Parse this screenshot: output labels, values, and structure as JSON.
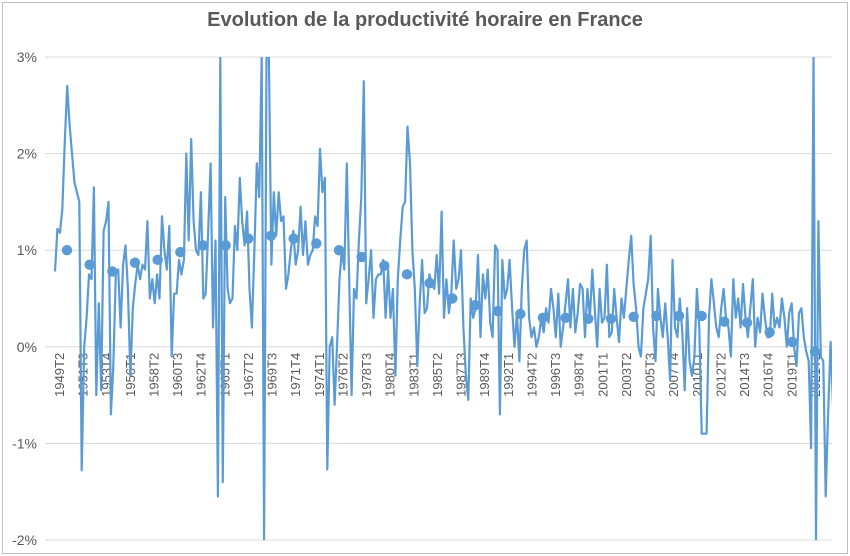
{
  "chart_data": {
    "type": "line",
    "title": "Evolution de la productivité horaire en France",
    "xlabel": "",
    "ylabel": "",
    "ylim": [
      -2,
      3
    ],
    "y_ticks": [
      "3%",
      "2%",
      "1%",
      "0%",
      "-1%",
      "-2%"
    ],
    "y_tick_values": [
      3,
      2,
      1,
      0,
      -1,
      -2
    ],
    "grid": "horizontal",
    "legend": "none",
    "line_color": "#5b9bd5",
    "x_tick_labels": [
      "1949T2",
      "1951T3",
      "1953T4",
      "1956T1",
      "1958T2",
      "1960T3",
      "1962T4",
      "1965T1",
      "1967T2",
      "1969T3",
      "1971T4",
      "1974T1",
      "1976T2",
      "1978T3",
      "1980T4",
      "1983T1",
      "1985T2",
      "1987T3",
      "1989T4",
      "1992T1",
      "1994T2",
      "1996T3",
      "1998T4",
      "2001T1",
      "2003T2",
      "2005T3",
      "2007T4",
      "2010T1",
      "2012T2",
      "2014T3",
      "2016T4",
      "2019T1",
      "2021T2"
    ],
    "series": [
      {
        "kind": "quarterly",
        "values": [
          0.78,
          1.22,
          1.18,
          1.42,
          2.1,
          2.7,
          2.3,
          2.0,
          1.7,
          1.6,
          1.5,
          -1.28,
          0.0,
          0.3,
          0.75,
          0.7,
          1.65,
          -0.5,
          0.45,
          -0.45,
          1.2,
          1.3,
          1.5,
          -0.7,
          -0.2,
          0.75,
          0.8,
          0.2,
          0.85,
          1.05,
          0.6,
          -0.3,
          0.4,
          0.65,
          0.85,
          0.7,
          0.85,
          0.8,
          1.3,
          0.5,
          0.7,
          0.45,
          0.75,
          0.5,
          1.35,
          1.0,
          0.8,
          1.25,
          -0.1,
          0.55,
          0.55,
          0.9,
          0.75,
          0.9,
          2.0,
          1.1,
          2.15,
          1.3,
          1.0,
          0.95,
          1.6,
          0.5,
          0.55,
          1.2,
          1.9,
          0.2,
          1.1,
          -1.55,
          3.0,
          -1.4,
          1.55,
          0.6,
          0.45,
          0.5,
          1.25,
          1.0,
          1.75,
          1.3,
          1.05,
          1.4,
          0.6,
          0.2,
          1.0,
          1.9,
          1.55,
          3.0,
          -2.0,
          3.0,
          3.0,
          0.85,
          1.6,
          1.15,
          1.6,
          1.3,
          1.35,
          0.6,
          0.75,
          1.0,
          1.2,
          0.85,
          1.0,
          1.45,
          0.95,
          1.3,
          0.85,
          0.95,
          1.0,
          1.35,
          1.25,
          2.05,
          1.6,
          1.75,
          -1.27,
          0.0,
          0.1,
          -0.6,
          0.0,
          0.7,
          1.0,
          0.8,
          1.9,
          0.7,
          -0.5,
          0.6,
          0.5,
          1.1,
          1.55,
          2.75,
          0.45,
          0.7,
          1.0,
          0.3,
          0.7,
          0.75,
          0.75,
          0.9,
          0.3,
          0.8,
          0.3,
          0.6,
          -0.3,
          0.7,
          1.1,
          1.45,
          1.5,
          2.28,
          1.9,
          1.0,
          0.6,
          -0.2,
          0.45,
          0.9,
          0.35,
          0.4,
          0.75,
          0.65,
          0.6,
          0.95,
          0.55,
          1.4,
          0.3,
          0.7,
          0.35,
          0.55,
          1.1,
          0.6,
          0.7,
          1.0,
          0.2,
          -0.3,
          -0.55,
          0.5,
          0.3,
          0.4,
          0.95,
          0.1,
          0.75,
          0.5,
          0.8,
          0.25,
          0.1,
          1.05,
          1.0,
          -0.7,
          0.9,
          0.5,
          0.6,
          0.9,
          0.4,
          0.0,
          0.35,
          -0.15,
          0.6,
          1.0,
          1.1,
          0.3,
          0.1,
          0.2,
          0.0,
          0.1,
          0.3,
          0.15,
          0.4,
          0.25,
          0.6,
          0.4,
          0.1,
          0.55,
          0.0,
          0.2,
          0.45,
          0.7,
          0.2,
          0.6,
          0.15,
          0.35,
          0.65,
          0.6,
          0.1,
          0.6,
          0.3,
          0.8,
          0.4,
          0.0,
          0.6,
          0.25,
          0.3,
          0.85,
          0.1,
          0.15,
          0.6,
          0.3,
          0.05,
          0.5,
          0.3,
          0.6,
          0.9,
          1.15,
          0.65,
          0.4,
          0.0,
          -0.1,
          0.4,
          0.55,
          0.7,
          1.15,
          0.2,
          -0.15,
          0.6,
          0.3,
          0.1,
          0.45,
          0.1,
          -0.35,
          0.9,
          0.2,
          0.1,
          0.5,
          0.15,
          -0.45,
          0.4,
          -0.15,
          -0.3,
          -0.1,
          0.6,
          0.2,
          -0.9,
          -0.9,
          -0.9,
          0.3,
          0.7,
          0.45,
          0.2,
          0.1,
          0.4,
          0.6,
          0.3,
          0.2,
          -0.1,
          0.7,
          0.3,
          0.5,
          0.2,
          0.65,
          0.3,
          0.1,
          0.4,
          0.7,
          0.0,
          0.3,
          0.15,
          0.55,
          0.3,
          0.1,
          0.1,
          0.55,
          0.2,
          0.3,
          0.2,
          0.5,
          0.3,
          0.0,
          0.35,
          0.45,
          0.0,
          -0.2,
          0.35,
          0.4,
          0.1,
          -0.05,
          -0.15,
          -1.05,
          3.0,
          -2.0,
          1.3,
          -0.1,
          -0.15,
          -1.55,
          -0.7,
          0.05,
          -0.6
        ]
      },
      {
        "kind": "averages",
        "values": [
          1.0,
          0.85,
          0.78,
          0.87,
          0.9,
          0.98,
          1.05,
          1.05,
          1.12,
          1.15,
          1.12,
          1.07,
          1.0,
          0.93,
          0.84,
          0.75,
          0.66,
          0.5,
          0.43,
          0.37,
          0.34,
          0.3,
          0.3,
          0.29,
          0.29,
          0.31,
          0.32,
          0.32,
          0.32,
          0.26,
          0.25,
          0.15,
          0.05,
          -0.05
        ]
      }
    ]
  }
}
